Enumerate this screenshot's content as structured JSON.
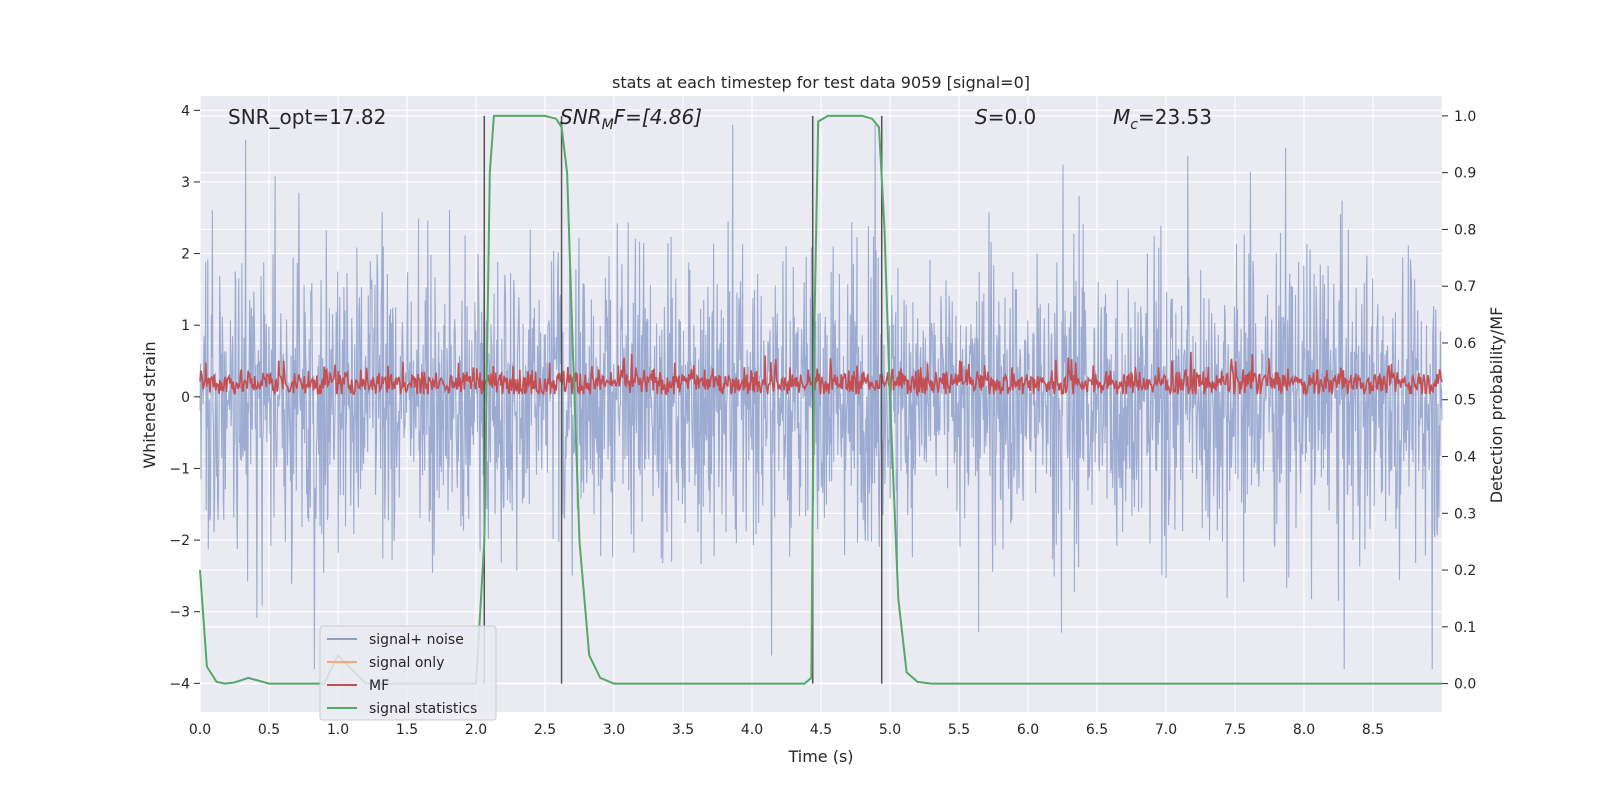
{
  "chart_data": {
    "type": "line",
    "title": "stats at each timestep for test data 9059 [signal=0]",
    "xlabel": "Time (s)",
    "ylabel": "Whitened strain",
    "y2label": "Detection probability/MF",
    "xlim": [
      0,
      9.0
    ],
    "ylim": [
      -4.4,
      4.2
    ],
    "y2lim": [
      -0.05,
      1.035
    ],
    "grid": true,
    "legend_position": "lower-left",
    "x_ticks": [
      "0.0",
      "0.5",
      "1.0",
      "1.5",
      "2.0",
      "2.5",
      "3.0",
      "3.5",
      "4.0",
      "4.5",
      "5.0",
      "5.5",
      "6.0",
      "6.5",
      "7.0",
      "7.5",
      "8.0",
      "8.5"
    ],
    "y_ticks": [
      "4",
      "3",
      "2",
      "1",
      "0",
      "−1",
      "−2",
      "−3",
      "−4"
    ],
    "y2_ticks": [
      "1.0",
      "0.9",
      "0.8",
      "0.7",
      "0.6",
      "0.5",
      "0.4",
      "0.3",
      "0.2",
      "0.1",
      "0.0"
    ],
    "annotations": {
      "snr_opt": "SNR_opt=17.82",
      "snr_mf_main": "SNR",
      "snr_mf_sub": "M",
      "snr_mf_rest": "F=[4.86]",
      "s_label": "S",
      "s_value": "=0.0",
      "mc_label": "M",
      "mc_sub": "c",
      "mc_value": "=23.53"
    },
    "vertical_lines_x": [
      2.06,
      2.62,
      4.44,
      4.94
    ],
    "series": [
      {
        "name": "signal+ noise",
        "color": "#8da0cb",
        "amplitude_range": [
          -3.8,
          3.8
        ],
        "description_values": "noise trace, approx. ±1.7 band with spikes to ±3.8"
      },
      {
        "name": "signal only",
        "color": "#f4a582",
        "values": []
      },
      {
        "name": "MF",
        "color": "#c44e52",
        "y2_mean": 0.53,
        "y2_range": [
          0.51,
          0.6
        ]
      },
      {
        "name": "signal statistics",
        "color": "#55a868",
        "x": [
          0.0,
          0.05,
          0.12,
          0.18,
          0.25,
          0.35,
          0.5,
          0.9,
          1.0,
          1.2,
          2.0,
          2.06,
          2.1,
          2.13,
          2.2,
          2.5,
          2.58,
          2.62,
          2.66,
          2.7,
          2.75,
          2.82,
          2.9,
          3.0,
          4.38,
          4.43,
          4.45,
          4.48,
          4.55,
          4.8,
          4.87,
          4.92,
          4.96,
          5.0,
          5.06,
          5.12,
          5.2,
          5.3,
          9.0
        ],
        "y2": [
          0.2,
          0.03,
          0.003,
          0.0,
          0.002,
          0.01,
          0.0,
          0.0,
          0.05,
          0.0,
          0.0,
          0.25,
          0.9,
          1.0,
          1.0,
          1.0,
          0.995,
          0.98,
          0.9,
          0.6,
          0.25,
          0.05,
          0.01,
          0.0,
          0.0,
          0.01,
          0.6,
          0.99,
          1.0,
          1.0,
          0.995,
          0.98,
          0.8,
          0.5,
          0.15,
          0.02,
          0.003,
          0.0,
          0.0
        ]
      }
    ]
  }
}
